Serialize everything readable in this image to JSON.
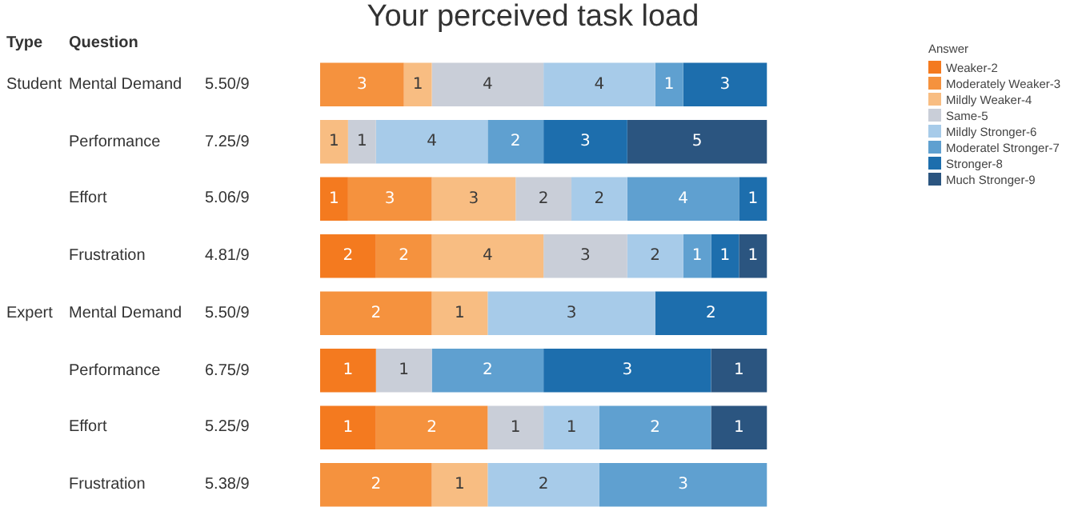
{
  "chart_data": [
    {
      "type": "bar",
      "title": "Your perceived task load",
      "orientation": "horizontal",
      "stacked": true,
      "data_labels": true,
      "legend": "top right",
      "legend_title": "Answer",
      "categories": [
        "Mental Demand",
        "Performance",
        "Effort",
        "Frustration"
      ],
      "annotations": [
        "Type",
        "Question",
        "Student",
        "5.50/9",
        "7.25/9",
        "5.06/9",
        "4.81/9"
      ],
      "series": [
        {
          "name": "Weaker-2",
          "color": "#f47a1f",
          "values": [
            null,
            null,
            1,
            2
          ]
        },
        {
          "name": "Moderately Weaker-3",
          "color": "#f5923e",
          "values": [
            3,
            null,
            3,
            2
          ]
        },
        {
          "name": "Mildly Weaker-4",
          "color": "#f8bd82",
          "values": [
            1,
            1,
            3,
            4
          ]
        },
        {
          "name": "Same-5",
          "color": "#c9ced8",
          "values": [
            4,
            1,
            2,
            3
          ]
        },
        {
          "name": "Mildly Stronger-6",
          "color": "#a7cbe9",
          "values": [
            4,
            4,
            2,
            2
          ]
        },
        {
          "name": "Moderatel Stronger-7",
          "color": "#5fa0d0",
          "values": [
            1,
            2,
            4,
            1
          ]
        },
        {
          "name": "Stronger-8",
          "color": "#1d6ead",
          "values": [
            3,
            3,
            1,
            1
          ]
        },
        {
          "name": "Much Stronger-9",
          "color": "#2b5580",
          "values": [
            null,
            5,
            null,
            1
          ]
        }
      ]
    },
    {
      "type": "bar",
      "orientation": "horizontal",
      "stacked": true,
      "data_labels": true,
      "categories": [
        "Mental Demand",
        "Performance",
        "Effort",
        "Frustration"
      ],
      "annotations": [
        "Expert",
        "5.50/9",
        "6.75/9",
        "5.25/9",
        "5.38/9"
      ],
      "series": [
        {
          "color": "#f47a1f",
          "values": [
            null,
            1,
            1,
            null
          ]
        },
        {
          "color": "#f5923e",
          "values": [
            2,
            null,
            2,
            2
          ]
        },
        {
          "color": "#f8bd82",
          "values": [
            1,
            null,
            null,
            1
          ]
        },
        {
          "color": "#c9ced8",
          "values": [
            null,
            1,
            1,
            null
          ]
        },
        {
          "color": "#a7cbe9",
          "values": [
            3,
            null,
            1,
            2
          ]
        },
        {
          "color": "#5fa0d0",
          "values": [
            null,
            2,
            2,
            3
          ]
        },
        {
          "color": "#1d6ead",
          "values": [
            2,
            3,
            null,
            null
          ]
        },
        {
          "color": "#2b5580",
          "values": [
            null,
            1,
            1,
            null
          ]
        }
      ]
    }
  ]
}
